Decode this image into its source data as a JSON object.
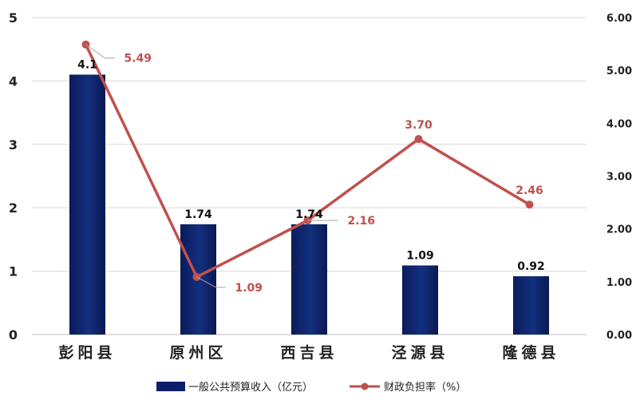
{
  "chart_data": {
    "type": "bar",
    "categories": [
      "彭阳县",
      "原州区",
      "西吉县",
      "泾源县",
      "隆德县"
    ],
    "series": [
      {
        "name": "一般公共预算收入（亿元）",
        "type": "bar",
        "axis": "left",
        "values": [
          4.1,
          1.74,
          1.74,
          1.09,
          0.92
        ],
        "labels": [
          "4.1",
          "1.74",
          "1.74",
          "1.09",
          "0.92"
        ],
        "color": "#0d1f6b"
      },
      {
        "name": "财政负担率（%）",
        "type": "line",
        "axis": "right",
        "values": [
          5.49,
          1.09,
          2.16,
          3.7,
          2.46
        ],
        "labels": [
          "5.49",
          "1.09",
          "2.16",
          "3.70",
          "2.46"
        ],
        "color": "#c0504d"
      }
    ],
    "y_left": {
      "ticks": [
        "0",
        "1",
        "2",
        "3",
        "4",
        "5"
      ],
      "lim": [
        0,
        5
      ]
    },
    "y_right": {
      "ticks": [
        "0.00",
        "1.00",
        "2.00",
        "3.00",
        "4.00",
        "5.00",
        "6.00"
      ],
      "lim": [
        0,
        6
      ]
    },
    "grid": true,
    "legend_position": "bottom"
  }
}
